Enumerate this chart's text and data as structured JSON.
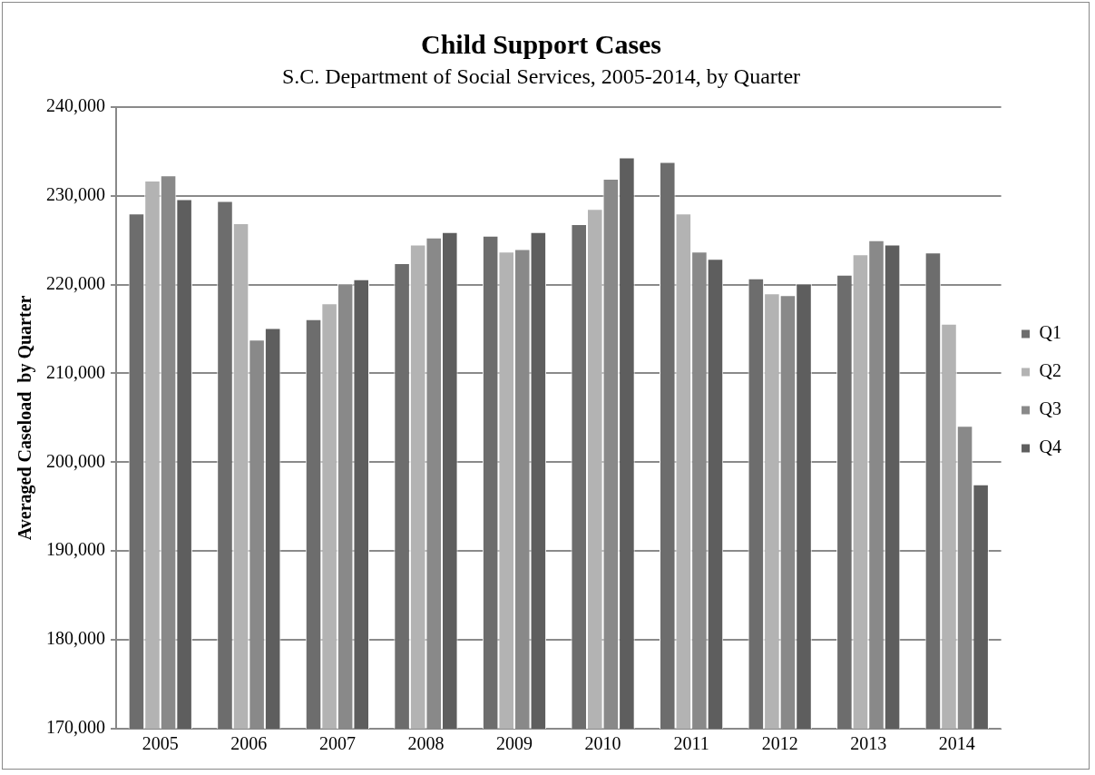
{
  "chart_data": {
    "type": "bar",
    "title": "Child Support Cases",
    "subtitle": "S.C. Department of Social Services, 2005-2014, by Quarter",
    "ylabel": "Averaged Caseload  by Quarter",
    "categories": [
      "2005",
      "2006",
      "2007",
      "2008",
      "2009",
      "2010",
      "2011",
      "2012",
      "2013",
      "2014"
    ],
    "series": [
      {
        "name": "Q1",
        "color": "#6d6d6d",
        "values": [
          228000,
          229400,
          216100,
          222400,
          225500,
          226800,
          233800,
          220700,
          221100,
          223600
        ]
      },
      {
        "name": "Q2",
        "color": "#b3b3b3",
        "values": [
          231700,
          226900,
          217900,
          224500,
          223700,
          228500,
          228000,
          219000,
          223400,
          215600
        ]
      },
      {
        "name": "Q3",
        "color": "#898989",
        "values": [
          232300,
          213800,
          220100,
          225300,
          224000,
          231900,
          223700,
          218800,
          225000,
          204100
        ]
      },
      {
        "name": "Q4",
        "color": "#5e5e5e",
        "values": [
          229600,
          215100,
          220600,
          225900,
          225900,
          234300,
          222900,
          220100,
          224500,
          197500
        ]
      }
    ],
    "ylim": [
      170000,
      240000
    ],
    "yticks": [
      {
        "value": 170000,
        "label": "170,000"
      },
      {
        "value": 180000,
        "label": "180,000"
      },
      {
        "value": 190000,
        "label": "190,000"
      },
      {
        "value": 200000,
        "label": "200,000"
      },
      {
        "value": 210000,
        "label": "210,000"
      },
      {
        "value": 220000,
        "label": "220,000"
      },
      {
        "value": 230000,
        "label": "230,000"
      },
      {
        "value": 240000,
        "label": "240,000"
      }
    ],
    "grid": "y",
    "legend": "right"
  }
}
